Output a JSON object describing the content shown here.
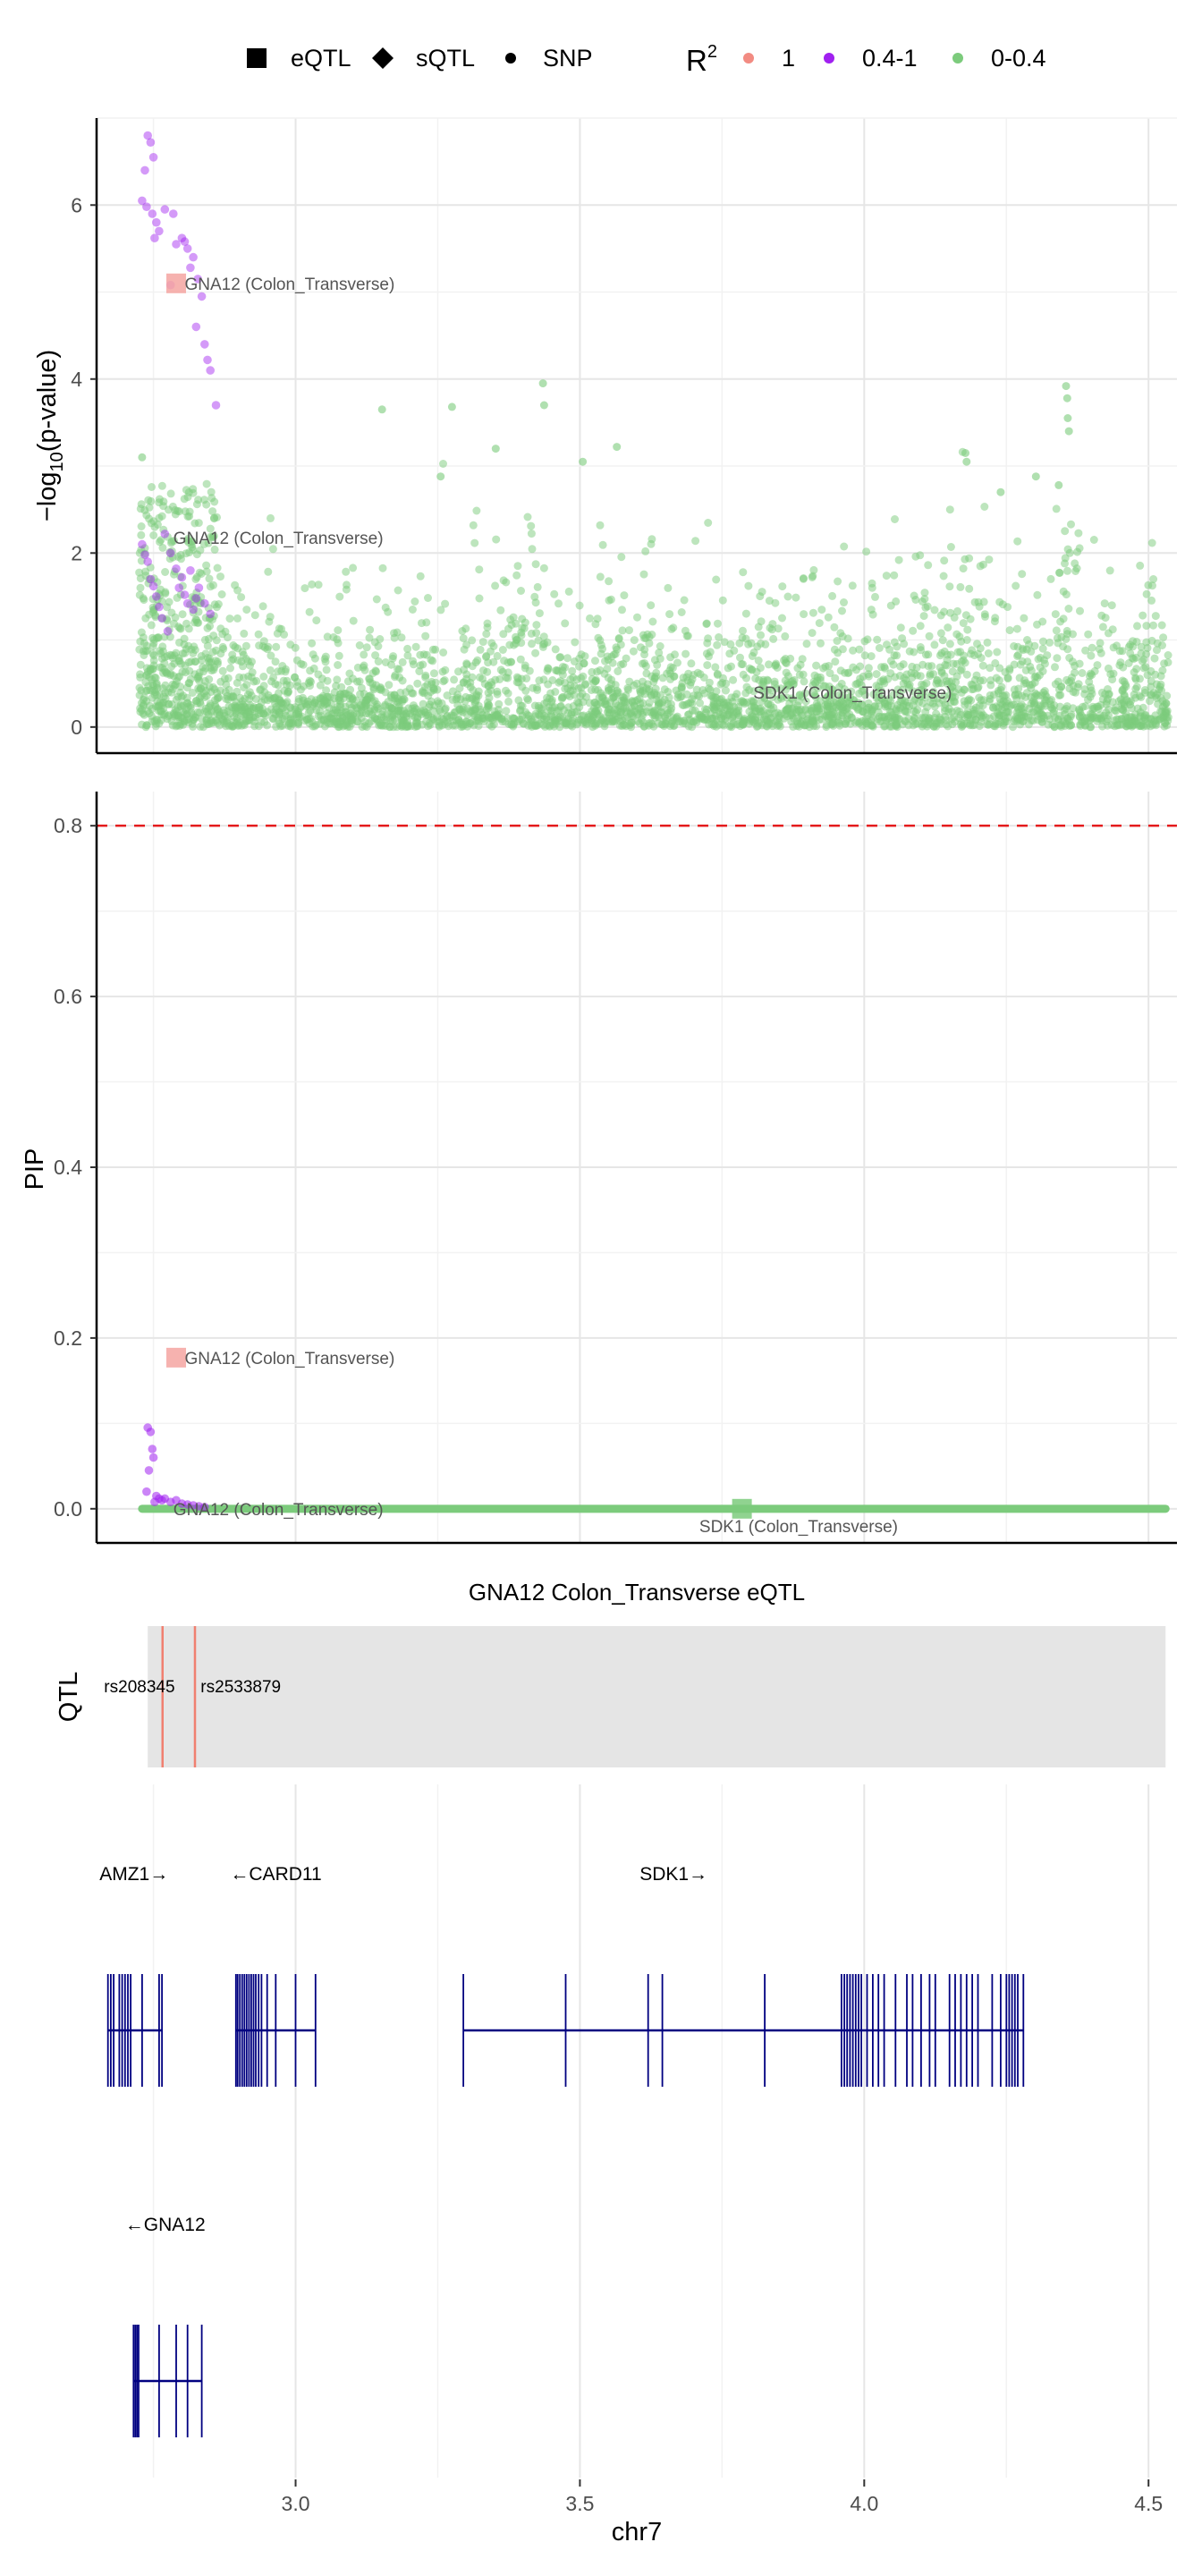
{
  "legend": {
    "shape_items": [
      {
        "label": "eQTL",
        "shape": "square"
      },
      {
        "label": "sQTL",
        "shape": "diamond"
      },
      {
        "label": "SNP",
        "shape": "circle"
      }
    ],
    "r2_title": "R",
    "r2_superscript": "2",
    "r2_items": [
      {
        "label": "1",
        "color": "#f28b82"
      },
      {
        "label": "0.4-1",
        "color": "#a020f0"
      },
      {
        "label": "0-0.4",
        "color": "#7ccb7c"
      }
    ]
  },
  "colors": {
    "high_ld": "#a020f0",
    "low_ld": "#7ccb7c",
    "lead": "#f4a5a1",
    "threshold": "#e41a1c",
    "gene": "#000080",
    "qtl_band": "#e5e5e5",
    "qtl_variant": "#f08070"
  },
  "chart_data": [
    {
      "type": "scatter",
      "panel": "association",
      "ylabel_prefix": "−log",
      "ylabel_sub": "10",
      "ylabel_suffix": "(p-value)",
      "xlim": [
        2.65,
        4.55
      ],
      "ylim": [
        -0.3,
        7.0
      ],
      "y_ticks": [
        0,
        2,
        4,
        6
      ],
      "y_tick_labels": [
        "0",
        "2",
        "4",
        "6"
      ],
      "points_high_ld": [
        [
          2.74,
          6.8
        ],
        [
          2.745,
          6.72
        ],
        [
          2.75,
          6.55
        ],
        [
          2.735,
          6.4
        ],
        [
          2.73,
          6.05
        ],
        [
          2.738,
          5.98
        ],
        [
          2.748,
          5.9
        ],
        [
          2.755,
          5.8
        ],
        [
          2.76,
          5.7
        ],
        [
          2.752,
          5.62
        ],
        [
          2.77,
          5.95
        ],
        [
          2.785,
          5.9
        ],
        [
          2.8,
          5.62
        ],
        [
          2.81,
          5.5
        ],
        [
          2.82,
          5.4
        ],
        [
          2.815,
          5.28
        ],
        [
          2.828,
          5.15
        ],
        [
          2.835,
          4.95
        ],
        [
          2.825,
          4.6
        ],
        [
          2.84,
          4.4
        ],
        [
          2.845,
          4.22
        ],
        [
          2.85,
          4.1
        ],
        [
          2.86,
          3.7
        ],
        [
          2.79,
          5.55
        ],
        [
          2.805,
          5.58
        ],
        [
          2.78,
          5.08
        ],
        [
          2.73,
          2.1
        ],
        [
          2.74,
          1.9
        ],
        [
          2.745,
          1.7
        ],
        [
          2.75,
          1.62
        ],
        [
          2.755,
          1.5
        ],
        [
          2.76,
          1.38
        ],
        [
          2.77,
          2.22
        ],
        [
          2.78,
          2.0
        ],
        [
          2.79,
          1.82
        ],
        [
          2.8,
          1.72
        ],
        [
          2.805,
          1.52
        ],
        [
          2.81,
          1.42
        ],
        [
          2.82,
          1.35
        ],
        [
          2.83,
          1.6
        ],
        [
          2.84,
          1.42
        ],
        [
          2.85,
          1.3
        ],
        [
          2.735,
          1.98
        ],
        [
          2.765,
          1.25
        ],
        [
          2.775,
          1.1
        ],
        [
          2.795,
          1.6
        ],
        [
          2.815,
          1.8
        ],
        [
          2.825,
          1.48
        ]
      ],
      "points_lead": [
        [
          2.79,
          5.1
        ]
      ],
      "labels": [
        {
          "text": "GNA12 (Colon_Transverse)",
          "x": 2.805,
          "y": 5.1
        },
        {
          "text": "GNA12 (Colon_Transverse)",
          "x": 2.785,
          "y": 2.18
        },
        {
          "text": "SDK1 (Colon_Transverse)",
          "x": 3.805,
          "y": 0.4
        }
      ]
    },
    {
      "type": "scatter",
      "panel": "fine-mapping",
      "ylabel": "PIP",
      "xlim": [
        2.65,
        4.55
      ],
      "ylim": [
        -0.04,
        0.84
      ],
      "y_ticks": [
        0.0,
        0.2,
        0.4,
        0.6,
        0.8
      ],
      "y_tick_labels": [
        "0.0",
        "0.2",
        "0.4",
        "0.6",
        "0.8"
      ],
      "threshold": 0.8,
      "zero_line_range": [
        2.73,
        4.53
      ],
      "points_high_ld": [
        [
          2.74,
          0.095
        ],
        [
          2.745,
          0.09
        ],
        [
          2.748,
          0.07
        ],
        [
          2.75,
          0.06
        ],
        [
          2.742,
          0.045
        ],
        [
          2.738,
          0.02
        ],
        [
          2.755,
          0.015
        ],
        [
          2.76,
          0.012
        ],
        [
          2.765,
          0.01
        ],
        [
          2.77,
          0.012
        ],
        [
          2.78,
          0.008
        ],
        [
          2.79,
          0.01
        ],
        [
          2.8,
          0.006
        ],
        [
          2.81,
          0.005
        ],
        [
          2.82,
          0.004
        ],
        [
          2.83,
          0.003
        ],
        [
          2.84,
          0.002
        ],
        [
          2.752,
          0.008
        ]
      ],
      "points_lead": [
        [
          2.79,
          0.177
        ]
      ],
      "points_green_square": [
        [
          3.785,
          0.0
        ]
      ],
      "labels": [
        {
          "text": "GNA12 (Colon_Transverse)",
          "x": 2.805,
          "y": 0.177
        },
        {
          "text": "GNA12 (Colon_Transverse)",
          "x": 2.785,
          "y": 0.0
        },
        {
          "text": "SDK1 (Colon_Transverse)",
          "x": 3.71,
          "y": -0.02
        }
      ]
    },
    {
      "type": "track",
      "panel": "qtl",
      "title": "GNA12 Colon_Transverse eQTL",
      "ylabel": "QTL",
      "band_range": [
        2.74,
        4.53
      ],
      "variants": [
        {
          "name": "rs208345",
          "x": 2.766,
          "label_x": 2.663
        },
        {
          "name": "rs2533879",
          "x": 2.823,
          "label_x": 2.833
        }
      ]
    },
    {
      "type": "track",
      "panel": "genes",
      "xlabel": "chr7",
      "x_ticks": [
        3.0,
        3.5,
        4.0,
        4.5
      ],
      "x_tick_labels": [
        "3.0",
        "3.5",
        "4.0",
        "4.5"
      ],
      "genes": [
        {
          "name": "AMZ1→",
          "label_x": 2.655,
          "row": 0,
          "start": 2.67,
          "end": 2.765,
          "exons": [
            2.67,
            2.675,
            2.68,
            2.69,
            2.695,
            2.7,
            2.705,
            2.71,
            2.73,
            2.76,
            2.765
          ]
        },
        {
          "name": "←CARD11",
          "label_x": 2.885,
          "row": 0,
          "start": 2.895,
          "end": 3.035,
          "exons": [
            2.895,
            2.898,
            2.902,
            2.906,
            2.91,
            2.914,
            2.918,
            2.922,
            2.926,
            2.93,
            2.935,
            2.94,
            2.95,
            2.965,
            3.0,
            3.035
          ]
        },
        {
          "name": "SDK1→",
          "label_x": 3.605,
          "row": 0,
          "start": 3.295,
          "end": 4.28,
          "exons": [
            3.295,
            3.475,
            3.62,
            3.645,
            3.825,
            3.96,
            3.965,
            3.97,
            3.975,
            3.98,
            3.985,
            3.99,
            3.995,
            4.005,
            4.015,
            4.025,
            4.035,
            4.055,
            4.075,
            4.085,
            4.1,
            4.115,
            4.125,
            4.15,
            4.16,
            4.17,
            4.18,
            4.19,
            4.2,
            4.225,
            4.24,
            4.25,
            4.255,
            4.26,
            4.265,
            4.27,
            4.28
          ]
        },
        {
          "name": "←GNA12",
          "label_x": 2.7,
          "row": 1,
          "start": 2.715,
          "end": 2.835,
          "exons": [
            2.715,
            2.718,
            2.721,
            2.724,
            2.76,
            2.79,
            2.81,
            2.835
          ]
        }
      ]
    }
  ]
}
